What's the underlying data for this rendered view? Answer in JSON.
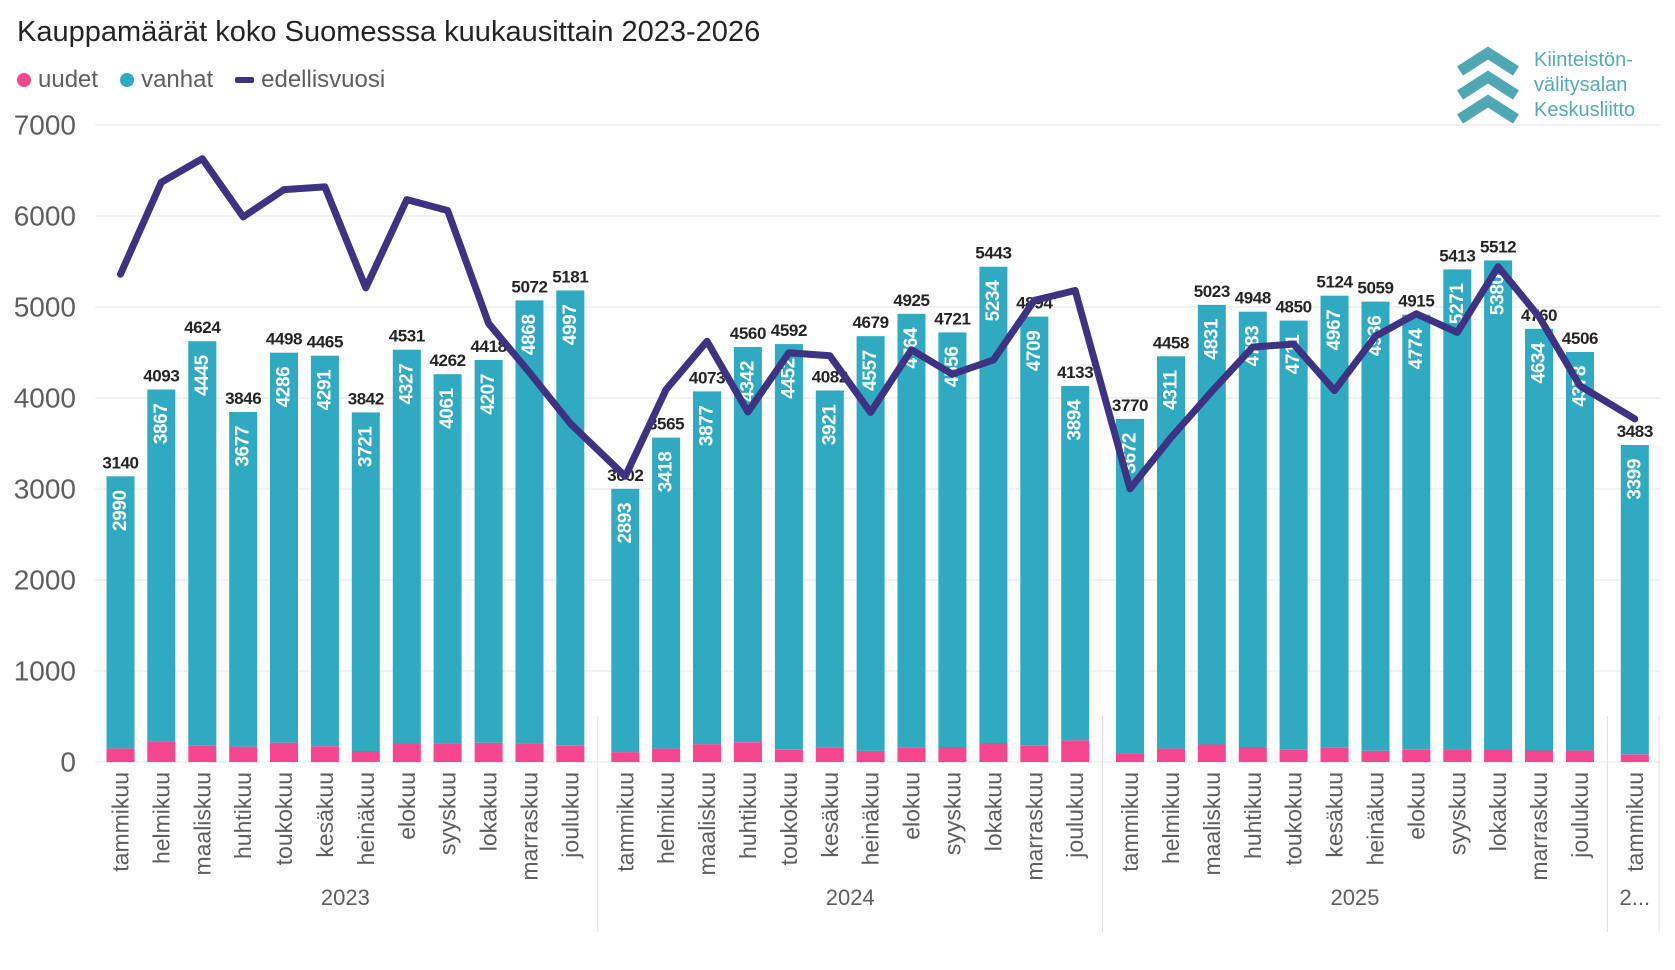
{
  "title": "Kauppamäärät koko Suomesssa kuukausittain 2023-2026",
  "legend": {
    "items": [
      {
        "label": "uudet",
        "marker": "dot",
        "color": "#F4478E"
      },
      {
        "label": "vanhat",
        "marker": "dot",
        "color": "#2FAAC1"
      },
      {
        "label": "edellisvuosi",
        "marker": "line",
        "color": "#3E3282"
      }
    ]
  },
  "logo": {
    "lines": [
      "Kiinteistön-",
      "välitysalan",
      "Keskusliitto"
    ],
    "color": "#4FA7B4"
  },
  "chart_data": {
    "type": "bar",
    "subtype": "stacked-columns-with-comparison-line",
    "title": "Kauppamäärät koko Suomesssa kuukausittain 2023-2026",
    "xlabel": "",
    "ylabel": "",
    "ylim": [
      0,
      7000
    ],
    "yticks": [
      0,
      1000,
      2000,
      3000,
      4000,
      5000,
      6000,
      7000
    ],
    "grid": true,
    "legend_position": "top-left",
    "bar_series": [
      "uudet",
      "vanhat"
    ],
    "line_series": "edellisvuosi",
    "colors": {
      "uudet": "#F4478E",
      "vanhat": "#2FAAC1",
      "edellisvuosi": "#3E3282",
      "gridline": "#E6E6E6",
      "total_label": "#252423",
      "inbar_label": "#FFFFFF",
      "axis_text": "#605E5C"
    },
    "groups": [
      {
        "year_label": "2023",
        "months": [
          "tammikuu",
          "helmikuu",
          "maaliskuu",
          "huhtikuu",
          "toukokuu",
          "kesäkuu",
          "heinäkuu",
          "elokuu",
          "syyskuu",
          "lokakuu",
          "marraskuu",
          "joulukuu"
        ],
        "totals": [
          3140,
          4093,
          4624,
          3846,
          4498,
          4465,
          3842,
          4531,
          4262,
          4418,
          5072,
          5181
        ],
        "vanhat": [
          2990,
          3867,
          4445,
          3677,
          4286,
          4291,
          3721,
          4327,
          4061,
          4207,
          4868,
          4997
        ],
        "edellisvuosi": [
          5360,
          6370,
          6630,
          5990,
          6290,
          6320,
          5210,
          6180,
          6060,
          4820,
          4280,
          3720
        ]
      },
      {
        "year_label": "2024",
        "months": [
          "tammikuu",
          "helmikuu",
          "maaliskuu",
          "huhtikuu",
          "toukokuu",
          "kesäkuu",
          "heinäkuu",
          "elokuu",
          "syyskuu",
          "lokakuu",
          "marraskuu",
          "joulukuu"
        ],
        "totals": [
          3002,
          3565,
          4073,
          4560,
          4592,
          4082,
          4679,
          4925,
          4721,
          5443,
          4894,
          4133
        ],
        "vanhat": [
          2893,
          3418,
          3877,
          4342,
          4452,
          3921,
          4557,
          4764,
          4556,
          5234,
          4709,
          3894
        ],
        "edellisvuosi": [
          3140,
          4093,
          4624,
          3846,
          4498,
          4465,
          3842,
          4531,
          4262,
          4418,
          5072,
          5181
        ]
      },
      {
        "year_label": "2025",
        "months": [
          "tammikuu",
          "helmikuu",
          "maaliskuu",
          "huhtikuu",
          "toukokuu",
          "kesäkuu",
          "heinäkuu",
          "elokuu",
          "syyskuu",
          "lokakuu",
          "marraskuu",
          "joulukuu"
        ],
        "totals": [
          3770,
          4458,
          5023,
          4948,
          4850,
          5124,
          5059,
          4915,
          5413,
          5512,
          4760,
          4506
        ],
        "vanhat": [
          3672,
          4311,
          4831,
          4783,
          4711,
          4967,
          4936,
          4774,
          5271,
          5380,
          4634,
          4378
        ],
        "edellisvuosi": [
          3002,
          3565,
          4073,
          4560,
          4592,
          4082,
          4679,
          4925,
          4721,
          5443,
          4894,
          4133
        ]
      },
      {
        "year_label": "2...",
        "months": [
          "tammikuu"
        ],
        "totals": [
          3483
        ],
        "vanhat": [
          3399
        ],
        "edellisvuosi": [
          3770
        ]
      }
    ]
  }
}
